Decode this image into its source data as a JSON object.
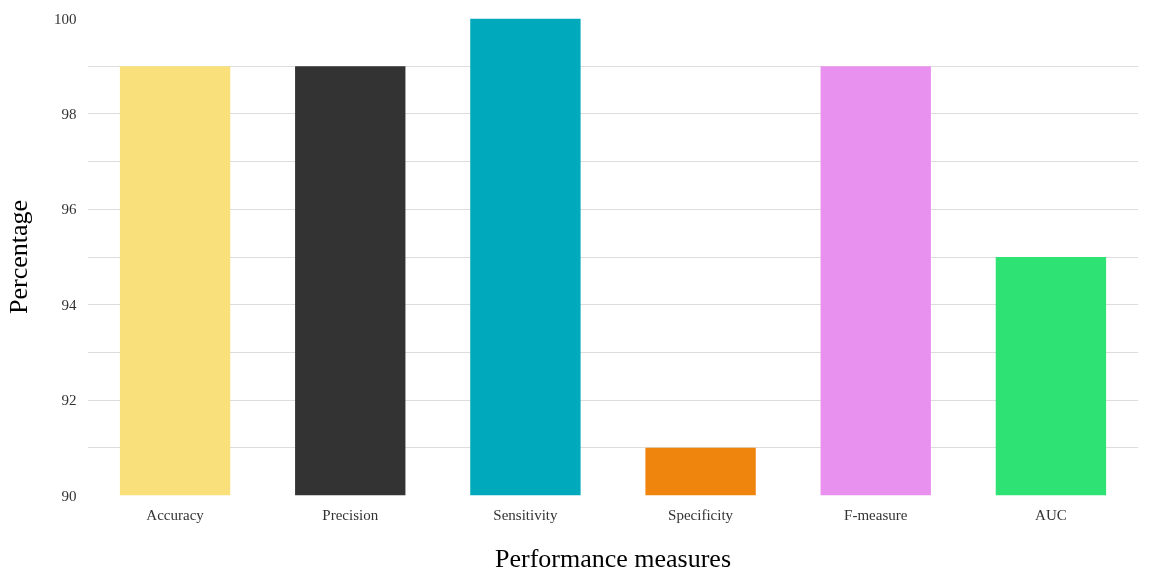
{
  "chart_data": {
    "type": "bar",
    "xlabel": "Performance measures",
    "ylabel": "Percentage",
    "categories": [
      "Accuracy",
      "Precision",
      "Sensitivity",
      "Specificity",
      "F-measure",
      "AUC"
    ],
    "values": [
      99,
      99,
      100,
      91,
      99,
      95
    ],
    "colors": [
      "#f9e07a",
      "#333333",
      "#00a9bb",
      "#f0850e",
      "#e891ef",
      "#2ee374"
    ],
    "ylim": [
      90,
      100
    ],
    "yticks": [
      90,
      {
        "value": 91,
        "label": null
      },
      92,
      {
        "value": 93,
        "label": null
      },
      94,
      {
        "value": 95,
        "label": null
      },
      96,
      {
        "value": 97,
        "label": null
      },
      98,
      {
        "value": 99,
        "label": null
      },
      100
    ],
    "grid": "y"
  }
}
